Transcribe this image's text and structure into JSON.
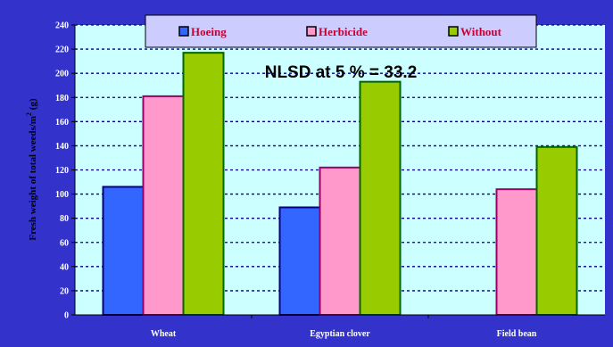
{
  "chart_data": {
    "type": "bar",
    "categories": [
      "Wheat",
      "Egyptian clover",
      "Field  bean"
    ],
    "series": [
      {
        "name": "Hoeing",
        "values": [
          106,
          89,
          null
        ],
        "color": "#3366ff"
      },
      {
        "name": "Herbicide",
        "values": [
          181,
          122,
          104
        ],
        "color": "#ff99cc"
      },
      {
        "name": "Without",
        "values": [
          217,
          193,
          139
        ],
        "color": "#99cc00"
      }
    ],
    "ylabel": "Fresh weight of total weeds/m",
    "ylabel_superscript": "2",
    "ylabel_unit": " (g)",
    "ylim": [
      0,
      240
    ],
    "yticks": [
      0,
      20,
      40,
      60,
      80,
      100,
      120,
      140,
      160,
      180,
      200,
      220,
      240
    ],
    "annotation": "NLSD at 5 % = 33.2",
    "grid": true,
    "legend_position": "top",
    "colors": {
      "frame_background": "#3333cc",
      "plot_background": "#ccffff",
      "legend_background": "#ccccff",
      "legend_text": "#cc0033",
      "gridline": "#000080",
      "bar_outline_hoeing": "#000080",
      "bar_outline_herbicide": "#990066",
      "bar_outline_without": "#006600"
    }
  }
}
